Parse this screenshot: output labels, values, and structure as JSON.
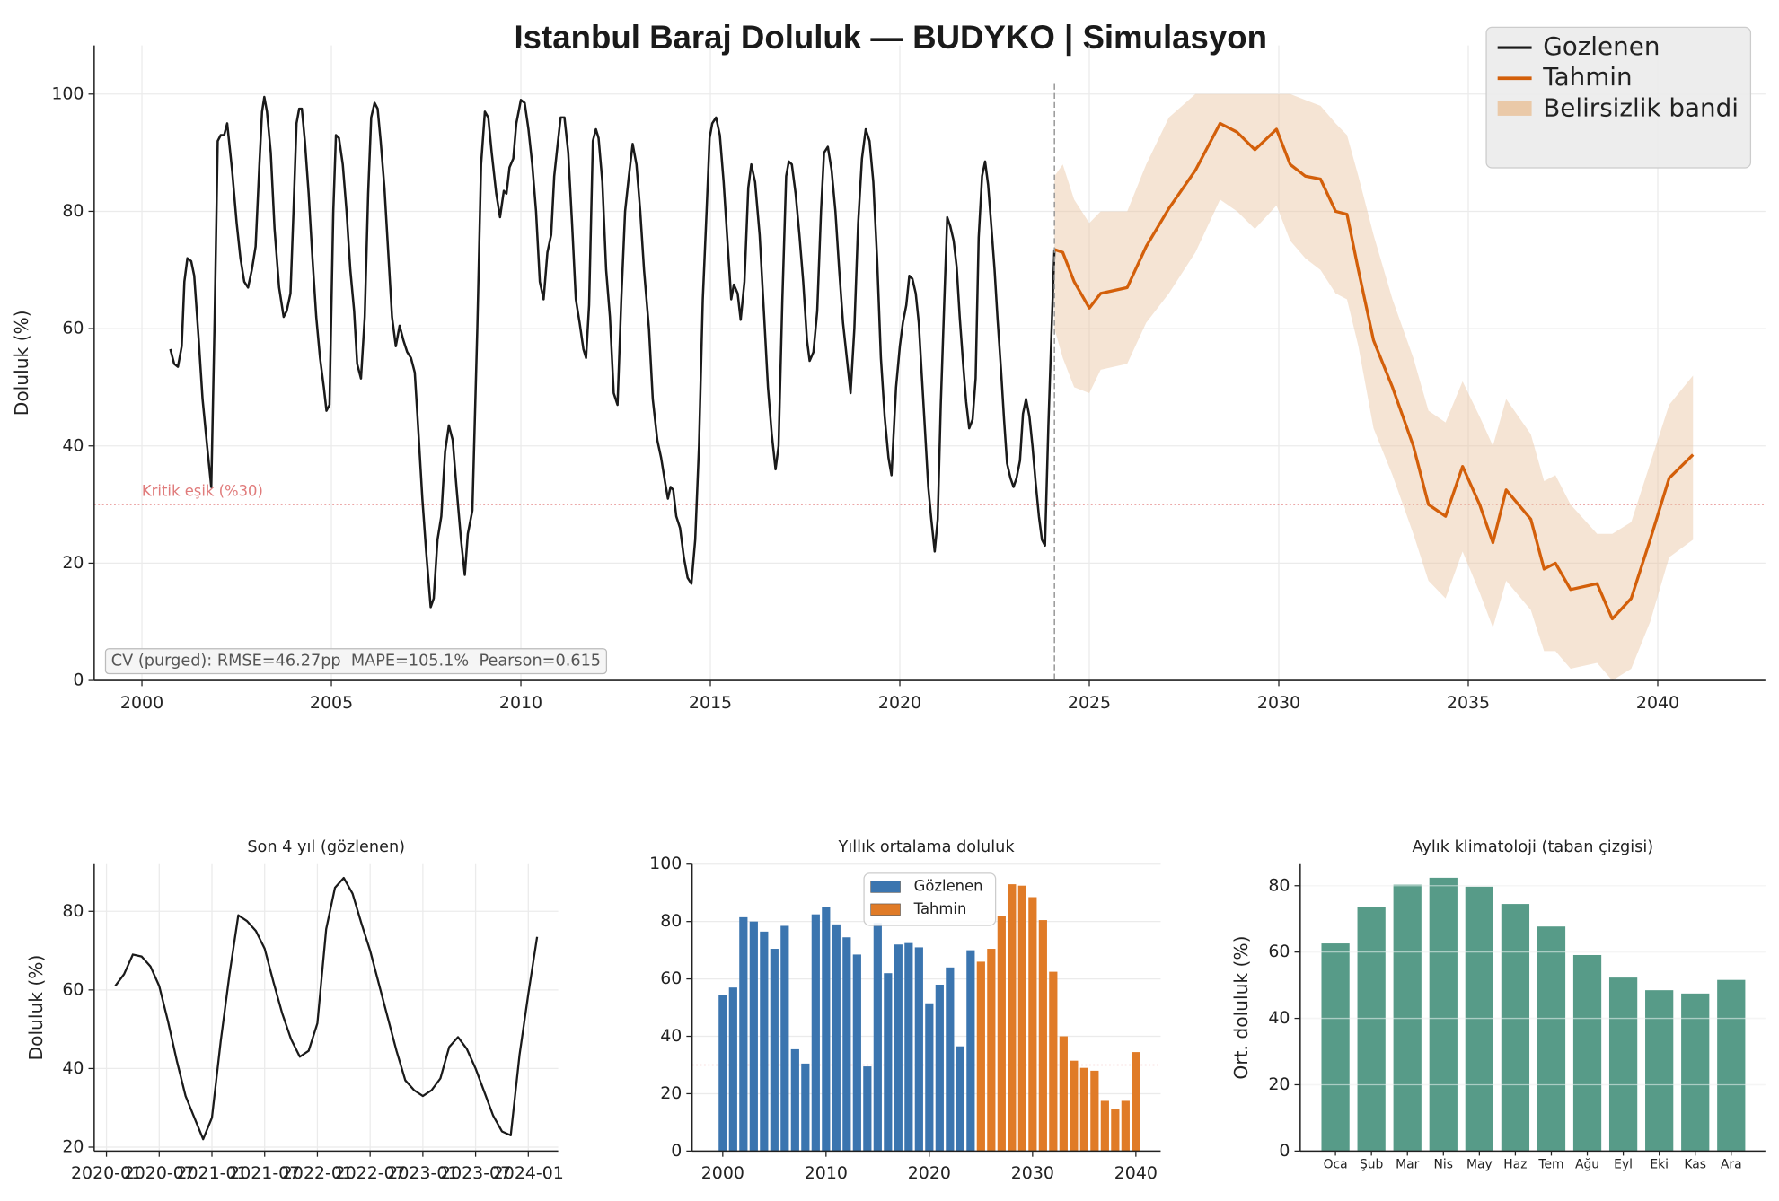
{
  "chart_data": [
    {
      "type": "line",
      "title": "Istanbul Baraj Doluluk — BUDYKO | Simulasyon",
      "ylabel": "Doluluk (%)",
      "xlim": [
        1998.74,
        2042.84
      ],
      "ylim": [
        0,
        108.3
      ],
      "xticks": [
        2000,
        2005,
        2010,
        2015,
        2020,
        2025,
        2030,
        2035,
        2040
      ],
      "yticks": [
        0,
        20,
        40,
        60,
        80,
        100
      ],
      "grid": true,
      "legend": "upper right",
      "threshold": {
        "value": 30,
        "label": "Kritik eşik (%30)"
      },
      "vline": 2024.08,
      "annotation": "CV (purged): RMSE=46.27pp  MAPE=105.1%  Pearson=0.615",
      "series": [
        {
          "name": "Gozlenen",
          "color": "#1a1a1a",
          "x": [
            2000.75,
            2000.85,
            2000.95,
            2001.05,
            2001.12,
            2001.2,
            2001.3,
            2001.38,
            2001.5,
            2001.6,
            2001.72,
            2001.83,
            2001.92,
            2002.0,
            2002.08,
            2002.17,
            2002.25,
            2002.38,
            2002.5,
            2002.6,
            2002.7,
            2002.8,
            2002.9,
            2003.0,
            2003.1,
            2003.17,
            2003.23,
            2003.3,
            2003.4,
            2003.5,
            2003.62,
            2003.74,
            2003.82,
            2003.92,
            2004.0,
            2004.08,
            2004.15,
            2004.22,
            2004.3,
            2004.4,
            2004.5,
            2004.6,
            2004.7,
            2004.8,
            2004.87,
            2004.95,
            2005.05,
            2005.12,
            2005.2,
            2005.3,
            2005.4,
            2005.5,
            2005.6,
            2005.68,
            2005.78,
            2005.88,
            2005.97,
            2006.05,
            2006.14,
            2006.22,
            2006.3,
            2006.4,
            2006.5,
            2006.6,
            2006.7,
            2006.8,
            2006.9,
            2007.0,
            2007.1,
            2007.2,
            2007.3,
            2007.4,
            2007.5,
            2007.62,
            2007.7,
            2007.8,
            2007.9,
            2008.0,
            2008.1,
            2008.2,
            2008.3,
            2008.42,
            2008.52,
            2008.6,
            2008.72,
            2008.85,
            2008.95,
            2009.05,
            2009.14,
            2009.23,
            2009.35,
            2009.45,
            2009.55,
            2009.62,
            2009.7,
            2009.8,
            2009.88,
            2010.0,
            2010.1,
            2010.2,
            2010.3,
            2010.4,
            2010.5,
            2010.6,
            2010.7,
            2010.8,
            2010.88,
            2010.98,
            2011.05,
            2011.15,
            2011.25,
            2011.35,
            2011.45,
            2011.55,
            2011.65,
            2011.72,
            2011.8,
            2011.9,
            2011.98,
            2012.05,
            2012.15,
            2012.25,
            2012.35,
            2012.45,
            2012.55,
            2012.65,
            2012.75,
            2012.85,
            2012.95,
            2013.05,
            2013.15,
            2013.25,
            2013.38,
            2013.48,
            2013.6,
            2013.7,
            2013.8,
            2013.88,
            2013.95,
            2014.02,
            2014.1,
            2014.2,
            2014.3,
            2014.4,
            2014.5,
            2014.6,
            2014.7,
            2014.8,
            2014.9,
            2014.98,
            2015.05,
            2015.15,
            2015.25,
            2015.35,
            2015.45,
            2015.55,
            2015.62,
            2015.72,
            2015.8,
            2015.9,
            2016.0,
            2016.08,
            2016.18,
            2016.3,
            2016.42,
            2016.52,
            2016.62,
            2016.72,
            2016.8,
            2016.9,
            2017.0,
            2017.07,
            2017.15,
            2017.25,
            2017.35,
            2017.45,
            2017.55,
            2017.62,
            2017.72,
            2017.82,
            2017.92,
            2018.0,
            2018.1,
            2018.2,
            2018.3,
            2018.4,
            2018.5,
            2018.6,
            2018.7,
            2018.8,
            2018.9,
            2019.0,
            2019.1,
            2019.2,
            2019.3,
            2019.4,
            2019.5,
            2019.6,
            2019.7,
            2019.78,
            2019.9,
            2020.0,
            2020.08,
            2020.17,
            2020.25,
            2020.33,
            2020.42,
            2020.5,
            2020.58,
            2020.67,
            2020.75,
            2020.83,
            2020.92,
            2021.0,
            2021.08,
            2021.17,
            2021.25,
            2021.33,
            2021.42,
            2021.5,
            2021.58,
            2021.67,
            2021.75,
            2021.83,
            2021.92,
            2022.0,
            2022.08,
            2022.17,
            2022.25,
            2022.33,
            2022.42,
            2022.5,
            2022.58,
            2022.67,
            2022.75,
            2022.83,
            2022.92,
            2023.0,
            2023.08,
            2023.17,
            2023.25,
            2023.33,
            2023.42,
            2023.5,
            2023.58,
            2023.67,
            2023.75,
            2023.83,
            2023.92,
            2024.0,
            2024.08
          ],
          "values": [
            56.5,
            54,
            53.5,
            57,
            68,
            72,
            71.5,
            69,
            58,
            48,
            40,
            33,
            62,
            92,
            93,
            93,
            95,
            87,
            78,
            72,
            68,
            67,
            70,
            74,
            88,
            97,
            99.5,
            97,
            90,
            77,
            67,
            62,
            63,
            66,
            80,
            95,
            97.5,
            97.5,
            92,
            83,
            72,
            62,
            55,
            50,
            46,
            47,
            80,
            93,
            92.5,
            88,
            80,
            70,
            63,
            54,
            51.5,
            62,
            83,
            96,
            98.5,
            97.5,
            92,
            84,
            73,
            62,
            57,
            60.5,
            58,
            56,
            55,
            52.5,
            42,
            31,
            22,
            12.5,
            14,
            24,
            28,
            39,
            43.5,
            41,
            33,
            24,
            18,
            25,
            29,
            60,
            88,
            97,
            96,
            90,
            83,
            79,
            83.5,
            83,
            87.5,
            89,
            95,
            99,
            98.5,
            94,
            88,
            80,
            68,
            65,
            73,
            76,
            86,
            92,
            96,
            96,
            90,
            78,
            65,
            61,
            56.5,
            55,
            64,
            92,
            94,
            92.5,
            85,
            70,
            62,
            49,
            47,
            65,
            80,
            86,
            91.5,
            88,
            80,
            70,
            60,
            48,
            41,
            38,
            34,
            31,
            33,
            32.5,
            28,
            26,
            21,
            17.5,
            16.5,
            24,
            40,
            65,
            80,
            92.5,
            95,
            96,
            93,
            85,
            75,
            65,
            67.5,
            66,
            61.5,
            68,
            84,
            88,
            85,
            76,
            62,
            50,
            42,
            36,
            40,
            65,
            86,
            88.5,
            88,
            83,
            76,
            68,
            58,
            54.5,
            56,
            63,
            80,
            90,
            91,
            87,
            80,
            70,
            61,
            55,
            49,
            60,
            78,
            89,
            94,
            92,
            85,
            72,
            55,
            45,
            38,
            35,
            50,
            57,
            61,
            64,
            69,
            68.5,
            66,
            61,
            52,
            42,
            33,
            27.5,
            22,
            27.5,
            47,
            64,
            79,
            77.5,
            75,
            70.5,
            62,
            54,
            47.5,
            43,
            44.5,
            51.5,
            75.5,
            86,
            88.5,
            84.5,
            77,
            70,
            61.5,
            53,
            44.5,
            37,
            34.5,
            33,
            34.5,
            37.5,
            45.5,
            48,
            45,
            40,
            34,
            28,
            24,
            23,
            43.5,
            59,
            73.5
          ]
        },
        {
          "name": "Tahmin",
          "color": "#d35f0a",
          "x": [
            2024.08,
            2024.3,
            2024.6,
            2025.0,
            2025.3,
            2026.0,
            2026.5,
            2027.1,
            2027.8,
            2028.45,
            2028.9,
            2029.37,
            2029.94,
            2030.3,
            2030.7,
            2031.1,
            2031.5,
            2031.8,
            2032.1,
            2032.5,
            2033.0,
            2033.55,
            2033.95,
            2034.4,
            2034.85,
            2035.3,
            2035.65,
            2036.0,
            2036.65,
            2037.0,
            2037.3,
            2037.7,
            2038.4,
            2038.8,
            2039.3,
            2039.8,
            2040.3,
            2040.93
          ],
          "values": [
            73.5,
            73,
            68,
            63.5,
            66,
            67,
            74,
            80.5,
            87,
            95,
            93.5,
            90.5,
            94,
            88,
            86,
            85.5,
            80,
            79.5,
            70,
            58,
            50,
            40,
            30,
            28,
            36.5,
            30,
            23.5,
            32.5,
            27.5,
            19,
            20,
            15.5,
            16.5,
            10.5,
            14,
            24,
            34.5,
            38.5
          ]
        },
        {
          "name": "Belirsizlik bandi",
          "color": "#e9c4a0",
          "x": [
            2024.08,
            2024.3,
            2024.6,
            2025.0,
            2025.3,
            2026.0,
            2026.5,
            2027.1,
            2027.8,
            2028.45,
            2028.9,
            2029.37,
            2029.94,
            2030.3,
            2030.7,
            2031.1,
            2031.5,
            2031.8,
            2032.1,
            2032.5,
            2033.0,
            2033.55,
            2033.95,
            2034.4,
            2034.85,
            2035.3,
            2035.65,
            2036.0,
            2036.65,
            2037.0,
            2037.3,
            2037.7,
            2038.4,
            2038.8,
            2039.3,
            2039.8,
            2040.3,
            2040.93
          ],
          "lower": [
            60,
            55,
            50,
            49,
            53,
            54,
            61,
            66,
            73,
            82,
            80,
            77,
            81,
            75,
            72,
            70,
            66,
            65,
            57,
            43,
            35,
            25,
            17,
            14,
            22,
            15,
            9,
            17,
            12,
            5,
            5,
            2,
            3,
            0,
            2,
            10,
            21,
            24
          ],
          "upper": [
            86,
            88,
            82,
            78,
            80,
            80,
            88,
            96,
            100,
            100,
            100,
            100,
            100,
            100,
            99,
            98,
            95,
            93,
            86,
            76,
            65,
            55,
            46,
            44,
            51,
            45,
            40,
            48,
            42,
            34,
            35,
            30,
            25,
            25,
            27,
            37,
            47,
            52
          ]
        }
      ]
    },
    {
      "type": "line",
      "title": "Son 4 yıl (gözlenen)",
      "ylabel": "Doluluk (%)",
      "ylim": [
        19,
        92
      ],
      "yticks": [
        20,
        40,
        60,
        80
      ],
      "xticks": [
        "2020-01",
        "2020-07",
        "2021-01",
        "2021-07",
        "2022-01",
        "2022-07",
        "2023-01",
        "2023-07",
        "2024-01"
      ],
      "grid": true,
      "color": "#1a1a1a",
      "x": [
        "2020-02",
        "2020-03",
        "2020-04",
        "2020-05",
        "2020-06",
        "2020-07",
        "2020-08",
        "2020-09",
        "2020-10",
        "2020-11",
        "2020-12",
        "2021-01",
        "2021-02",
        "2021-03",
        "2021-04",
        "2021-05",
        "2021-06",
        "2021-07",
        "2021-08",
        "2021-09",
        "2021-10",
        "2021-11",
        "2021-12",
        "2022-01",
        "2022-02",
        "2022-03",
        "2022-04",
        "2022-05",
        "2022-06",
        "2022-07",
        "2022-08",
        "2022-09",
        "2022-10",
        "2022-11",
        "2022-12",
        "2023-01",
        "2023-02",
        "2023-03",
        "2023-04",
        "2023-05",
        "2023-06",
        "2023-07",
        "2023-08",
        "2023-09",
        "2023-10",
        "2023-11",
        "2023-12",
        "2024-01",
        "2024-02"
      ],
      "values": [
        61,
        64,
        69,
        68.5,
        66,
        61,
        52,
        42,
        33,
        27.5,
        22,
        27.5,
        47,
        64,
        79,
        77.5,
        75,
        70.5,
        62,
        54,
        47.5,
        43,
        44.5,
        51.5,
        75.5,
        86,
        88.5,
        84.5,
        77,
        70,
        61.5,
        53,
        44.5,
        37,
        34.5,
        33,
        34.5,
        37.5,
        45.5,
        48,
        45,
        40,
        34,
        28,
        24,
        23,
        43.5,
        59,
        73.5
      ]
    },
    {
      "type": "bar",
      "title": "Yıllık ortalama doluluk",
      "xlim": [
        1997.03,
        2042.4
      ],
      "ylim": [
        0,
        100
      ],
      "xticks": [
        2000,
        2010,
        2020,
        2030,
        2040
      ],
      "yticks": [
        0,
        20,
        40,
        60,
        80,
        100
      ],
      "grid": true,
      "legend": "upper center",
      "threshold": 30,
      "series": [
        {
          "name": "Gözlenen",
          "color": "#3b75af",
          "x": [
            2000,
            2001,
            2002,
            2003,
            2004,
            2005,
            2006,
            2007,
            2008,
            2009,
            2010,
            2011,
            2012,
            2013,
            2014,
            2015,
            2016,
            2017,
            2018,
            2019,
            2020,
            2021,
            2022,
            2023,
            2024
          ],
          "values": [
            54.5,
            57,
            81.5,
            80,
            76.5,
            70.5,
            78.5,
            35.5,
            30.5,
            82.5,
            85,
            79,
            74.5,
            68.5,
            29.5,
            79.5,
            62,
            72,
            72.5,
            71,
            51.5,
            58,
            64,
            36.5,
            70
          ]
        },
        {
          "name": "Tahmin",
          "color": "#e07b27",
          "x": [
            2025,
            2026,
            2027,
            2028,
            2029,
            2030,
            2031,
            2032,
            2033,
            2034,
            2035,
            2036,
            2037,
            2038,
            2039,
            2040
          ],
          "values": [
            66,
            70.5,
            82,
            93,
            92.5,
            88.5,
            80.5,
            62.5,
            40,
            31.5,
            29,
            28,
            17.5,
            14.5,
            17.5,
            34.5
          ]
        }
      ]
    },
    {
      "type": "bar",
      "title": "Aylık klimatoloji (taban çizgisi)",
      "ylabel": "Ort. doluluk (%)",
      "ylim": [
        0,
        86.5
      ],
      "yticks": [
        0,
        20,
        40,
        60,
        80
      ],
      "grid": true,
      "color": "#579b88",
      "categories": [
        "Oca",
        "Şub",
        "Mar",
        "Nis",
        "May",
        "Haz",
        "Tem",
        "Ağu",
        "Eyl",
        "Eki",
        "Kas",
        "Ara"
      ],
      "values": [
        62.6,
        73.5,
        80.3,
        82.4,
        79.7,
        74.5,
        67.7,
        59.1,
        52.3,
        48.5,
        47.5,
        51.6
      ]
    }
  ]
}
